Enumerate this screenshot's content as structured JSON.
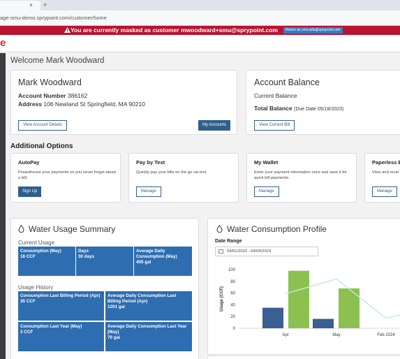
{
  "browser": {
    "tab_close": "×",
    "tab_plus": "+",
    "url": "age-smu-demo.sprypoint.com/customer/home"
  },
  "banner": {
    "text": "You are currently masked as customer mwoodward+smu@sprypoint.com",
    "return_label": "Return as smccalla@sprypoint.com",
    "color": "#b8132f"
  },
  "header": {
    "logo_fragment": "e",
    "logo_color": "#d6292f"
  },
  "welcome": "Welcome Mark Woodward",
  "account": {
    "title": "Mark Woodward",
    "number_label": "Account Number",
    "number": "386162",
    "address_label": "Address",
    "address": "106 Newland St Springfield, MA 90210",
    "details_button": "View Account Details",
    "my_accounts_button": "My Accounts"
  },
  "balance": {
    "title": "Account Balance",
    "current_label": "Current Balance",
    "total_label": "Total Balance",
    "due": "(Due Date 05/18/2023)",
    "view_bill_button": "View Current Bill"
  },
  "options": {
    "title": "Additional Options",
    "items": [
      {
        "title": "AutoPay",
        "desc": "Preauthorize your payments so you never forget about a bill.",
        "button": "Sign Up"
      },
      {
        "title": "Pay by Text",
        "desc": "Quickly pay your bills on the go via text.",
        "button": "Manage"
      },
      {
        "title": "My Wallet",
        "desc": "Enter your payment information once and save it for quick bill payments.",
        "button": "Manage"
      },
      {
        "title": "Paperless E",
        "desc": "View and recal",
        "button": "Manage"
      }
    ]
  },
  "usage": {
    "title": "Water Usage Summary",
    "current_label": "Current Usage",
    "current": [
      {
        "label": "Consumption (May)",
        "value": "16 CCF"
      },
      {
        "label": "Days",
        "value": "30 days"
      },
      {
        "label": "Average Daily Consumption (May)",
        "value": "405 gal"
      }
    ],
    "history_label": "Usage History",
    "history": [
      {
        "label": "Consumption Last Billing Period (Apr)",
        "value": "35 CCF"
      },
      {
        "label": "Average Daily Consumption Last Billing Period (Apr)",
        "value": "1201 gal"
      },
      {
        "label": "Consumption Last Year (May)",
        "value": "3 CCF"
      },
      {
        "label": "Average Daily Consumption Last Year (May)",
        "value": "70 gal"
      }
    ],
    "tile_color": "#2e6db0"
  },
  "profile": {
    "title": "Water Consumption Profile",
    "date_range_label": "Date Range",
    "date_range": "04/01/2023 - 04/05/2024"
  },
  "chart_data": {
    "type": "bar",
    "ylabel": "Usage (CCF)",
    "ylim": [
      0,
      100
    ],
    "yticks": [
      0,
      20,
      40,
      60,
      80,
      100
    ],
    "xtick_labels": [
      "Apr",
      "May",
      "Feb 2024"
    ],
    "bars": [
      {
        "group": "Apr",
        "series": "dark",
        "value": 35
      },
      {
        "group": "Apr",
        "series": "green",
        "value": 98
      },
      {
        "group": "May",
        "series": "dark",
        "value": 16
      },
      {
        "group": "May",
        "series": "green",
        "value": 68
      }
    ],
    "line": {
      "series": "light",
      "values": [
        59,
        84,
        17,
        35
      ]
    },
    "colors": {
      "dark": "#3a5f92",
      "green": "#8cc152",
      "light": "#c6e7dc"
    }
  }
}
